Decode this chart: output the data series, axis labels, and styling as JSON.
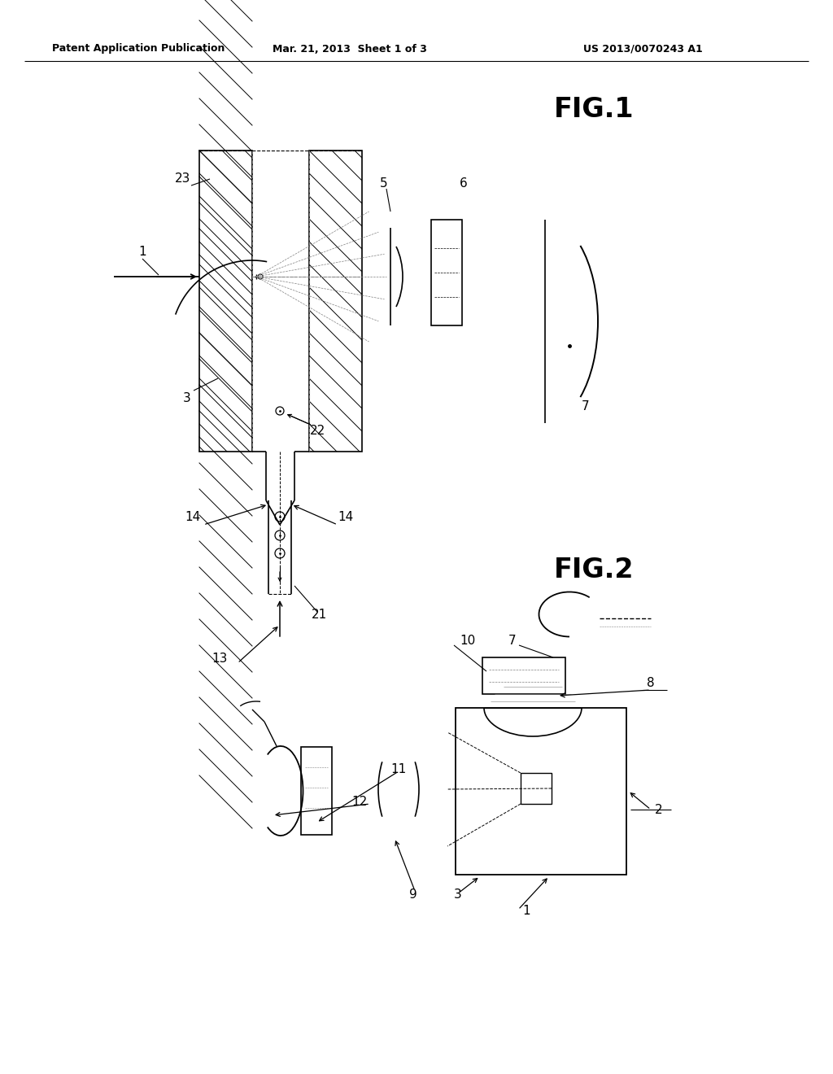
{
  "bg_color": "#ffffff",
  "header_left": "Patent Application Publication",
  "header_mid": "Mar. 21, 2013  Sheet 1 of 3",
  "header_right": "US 2013/0070243 A1",
  "fig1_label": "FIG.1",
  "fig2_label": "FIG.2",
  "fig_width": 10.24,
  "fig_height": 13.2
}
